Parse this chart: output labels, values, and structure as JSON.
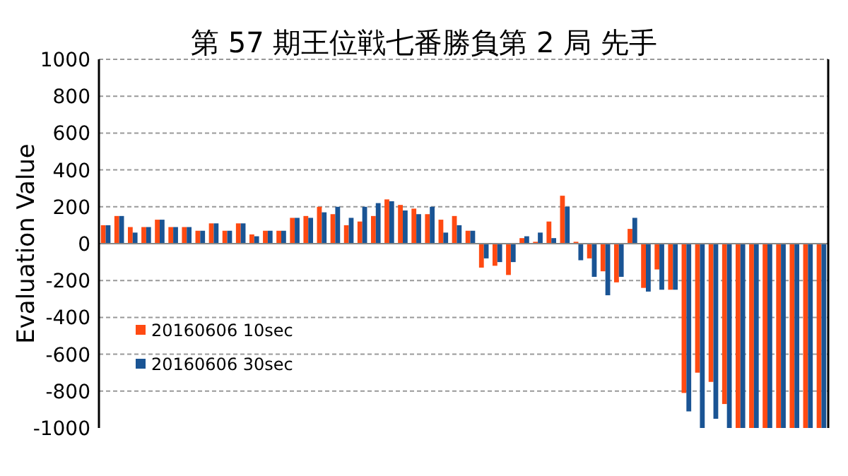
{
  "chart_data": {
    "type": "bar",
    "title": "第 57 期王位戦七番勝負第 2 局 先手",
    "ylabel": "Evaluation Value",
    "categories": [
      null,
      null,
      null,
      null,
      null,
      null,
      null,
      null,
      null,
      null,
      null,
      null,
      null,
      null,
      null,
      null,
      null,
      null,
      null,
      null,
      null,
      null,
      null,
      null,
      null,
      null,
      null,
      null,
      null,
      null,
      null,
      null,
      null,
      null,
      null,
      null,
      null,
      null,
      null,
      null,
      null,
      null,
      null,
      null,
      null,
      null,
      null,
      null,
      null,
      null,
      null,
      null,
      null,
      null
    ],
    "series": [
      {
        "name": "20160606 10sec",
        "color": "#ff4a12",
        "values": [
          100,
          150,
          90,
          90,
          130,
          90,
          90,
          70,
          110,
          70,
          110,
          50,
          70,
          70,
          140,
          150,
          200,
          160,
          100,
          120,
          150,
          240,
          210,
          190,
          160,
          130,
          150,
          70,
          -130,
          -120,
          -170,
          30,
          10,
          120,
          260,
          10,
          -80,
          -150,
          -210,
          80,
          -240,
          -140,
          -250,
          -810,
          -700,
          -750,
          -870,
          -1000,
          -1000,
          -1000,
          -1000,
          -1000,
          -1000,
          -1000
        ]
      },
      {
        "name": "20160606 30sec",
        "color": "#1a5494",
        "values": [
          100,
          150,
          60,
          90,
          130,
          90,
          90,
          70,
          110,
          70,
          110,
          40,
          70,
          70,
          140,
          140,
          170,
          200,
          140,
          200,
          220,
          230,
          180,
          160,
          200,
          60,
          100,
          70,
          -80,
          -100,
          -100,
          40,
          60,
          30,
          200,
          -90,
          -180,
          -280,
          -180,
          140,
          -260,
          -250,
          -250,
          -910,
          -1000,
          -950,
          -1000,
          -1000,
          -1000,
          -1000,
          -1000,
          -1000,
          -1000,
          -1000
        ]
      }
    ],
    "ylim": [
      -1000,
      1000
    ],
    "yticks": [
      -1000,
      -800,
      -600,
      -400,
      -200,
      0,
      200,
      400,
      600,
      800,
      1000
    ],
    "grid": "y",
    "legend": "left"
  }
}
